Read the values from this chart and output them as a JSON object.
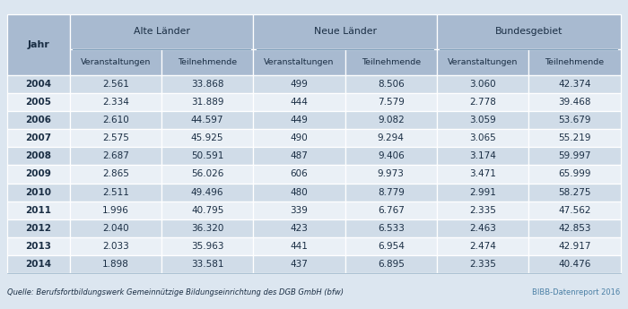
{
  "source": "Quelle: Berufsfortbildungswerk Gemeinnützige Bildungseinrichtung des DGB GmbH (bfw)",
  "source_right": "BIBB-Datenreport 2016",
  "col_groups": [
    "Alte Länder",
    "Neue Länder",
    "Bundesgebiet"
  ],
  "col_sub": [
    "Veranstaltungen",
    "Teilnehmende"
  ],
  "rows": [
    [
      "2004",
      "2.561",
      "33.868",
      "499",
      "8.506",
      "3.060",
      "42.374"
    ],
    [
      "2005",
      "2.334",
      "31.889",
      "444",
      "7.579",
      "2.778",
      "39.468"
    ],
    [
      "2006",
      "2.610",
      "44.597",
      "449",
      "9.082",
      "3.059",
      "53.679"
    ],
    [
      "2007",
      "2.575",
      "45.925",
      "490",
      "9.294",
      "3.065",
      "55.219"
    ],
    [
      "2008",
      "2.687",
      "50.591",
      "487",
      "9.406",
      "3.174",
      "59.997"
    ],
    [
      "2009",
      "2.865",
      "56.026",
      "606",
      "9.973",
      "3.471",
      "65.999"
    ],
    [
      "2010",
      "2.511",
      "49.496",
      "480",
      "8.779",
      "2.991",
      "58.275"
    ],
    [
      "2011",
      "1.996",
      "40.795",
      "339",
      "6.767",
      "2.335",
      "47.562"
    ],
    [
      "2012",
      "2.040",
      "36.320",
      "423",
      "6.533",
      "2.463",
      "42.853"
    ],
    [
      "2013",
      "2.033",
      "35.963",
      "441",
      "6.954",
      "2.474",
      "42.917"
    ],
    [
      "2014",
      "1.898",
      "33.581",
      "437",
      "6.895",
      "2.335",
      "40.476"
    ]
  ],
  "header_bg": "#a8bad0",
  "row_bg_light": "#d0dce8",
  "row_bg_white": "#eaf0f6",
  "text_color": "#1a2e44",
  "footer_color": "#1a2e44",
  "footer_right_color": "#4a7fa5",
  "fig_bg": "#dce6f0",
  "col_widths_rel": [
    0.88,
    1.3,
    1.3,
    1.3,
    1.3,
    1.3,
    1.3
  ]
}
